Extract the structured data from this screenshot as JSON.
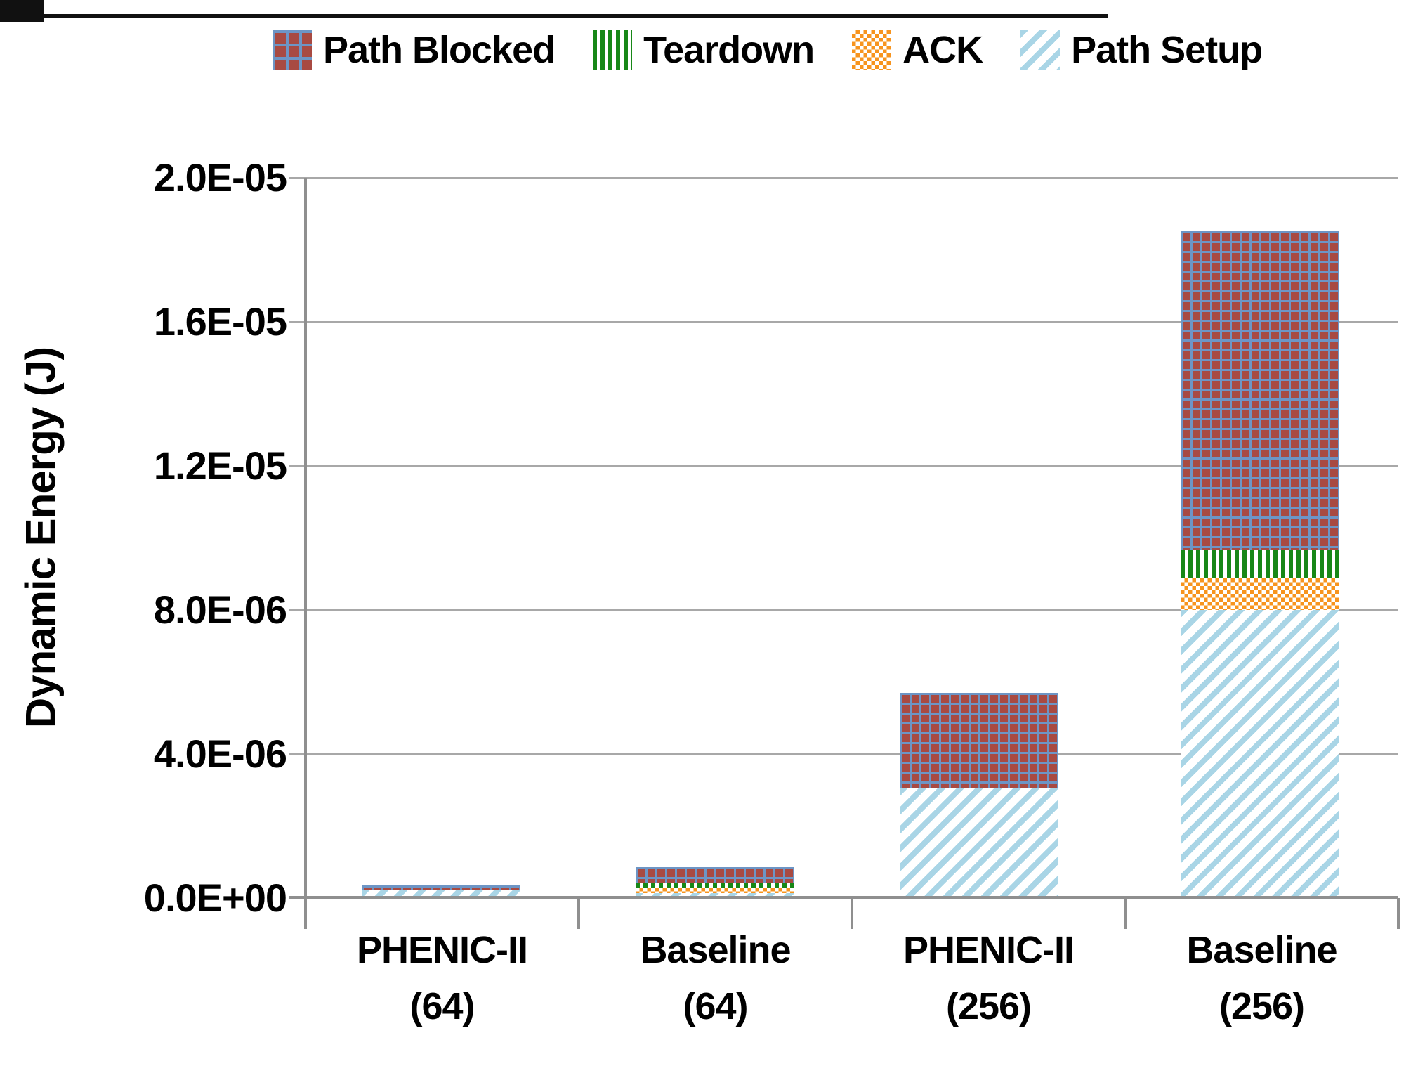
{
  "chart_data": {
    "type": "bar",
    "stacked": true,
    "title": "",
    "xlabel": "",
    "ylabel": "Dynamic Energy (J)",
    "ylim": [
      0,
      2e-05
    ],
    "grid": true,
    "legend_position": "top",
    "legend_order": [
      "Path Blocked",
      "Teardown",
      "ACK",
      "Path Setup"
    ],
    "ytick_labels": [
      "0.0E+00",
      "4.0E-06",
      "8.0E-06",
      "1.2E-05",
      "1.6E-05",
      "2.0E-05"
    ],
    "categories": [
      {
        "line1": "PHENIC-II",
        "line2": "(64)"
      },
      {
        "line1": "Baseline",
        "line2": "(64)"
      },
      {
        "line1": "PHENIC-II",
        "line2": "(256)"
      },
      {
        "line1": "Baseline",
        "line2": "(256)"
      }
    ],
    "series": [
      {
        "name": "Path Setup",
        "pattern": "diagonal-stripes",
        "color": "#A9D5E6",
        "values": [
          2.1e-07,
          1.45e-07,
          3.05e-06,
          8e-06
        ]
      },
      {
        "name": "ACK",
        "pattern": "checkerboard",
        "color": "#F7941E",
        "values": [
          0,
          1.4e-07,
          0,
          8.8e-07
        ]
      },
      {
        "name": "Teardown",
        "pattern": "vertical-stripes",
        "color": "#178717",
        "values": [
          0,
          1.55e-07,
          0,
          7.8e-07
        ]
      },
      {
        "name": "Path Blocked",
        "pattern": "grid",
        "color": "#A84A42",
        "grid_line_color": "#6D95C5",
        "values": [
          1.4e-07,
          4.3e-07,
          2.65e-06,
          8.85e-06
        ]
      }
    ]
  }
}
